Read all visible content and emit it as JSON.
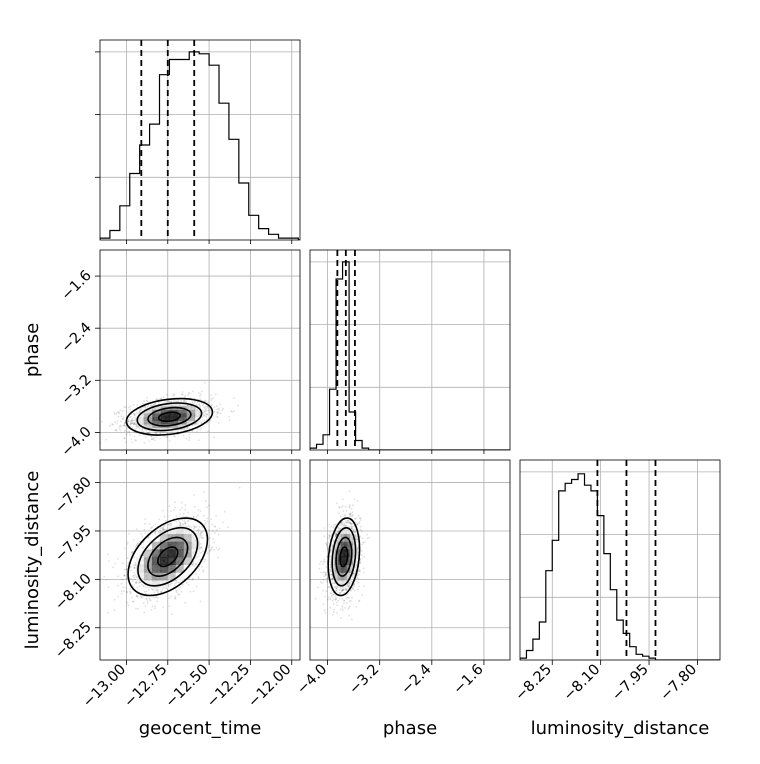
{
  "chart_data": {
    "type": "corner",
    "parameters": [
      "geocent_time",
      "phase",
      "luminosity_distance"
    ],
    "axis_labels": {
      "x": [
        "geocent_time",
        "phase",
        "luminosity_distance"
      ],
      "y_row2": "phase",
      "y_row3": "luminosity_distance"
    },
    "ranges": {
      "geocent_time": [
        -13.16,
        -11.95
      ],
      "phase": [
        -4.27,
        -1.2
      ],
      "luminosity_distance": [
        -8.35,
        -7.73
      ]
    },
    "ticks": {
      "geocent_time": [
        "-13.00",
        "-12.75",
        "-12.50",
        "-12.25",
        "-12.00"
      ],
      "phase": [
        "-4.0",
        "-3.2",
        "-2.4",
        "-1.6"
      ],
      "luminosity_distance": [
        "-8.25",
        "-8.10",
        "-7.95",
        "-7.80"
      ]
    },
    "quantiles": {
      "geocent_time": [
        -12.91,
        -12.75,
        -12.59
      ],
      "phase": [
        -3.85,
        -3.72,
        -3.58
      ],
      "luminosity_distance": [
        -8.11,
        -8.02,
        -7.93
      ]
    },
    "histograms": {
      "geocent_time": {
        "edges_start": -13.16,
        "bin_width": 0.06,
        "counts": [
          0.01,
          0.05,
          0.18,
          0.35,
          0.5,
          0.61,
          0.87,
          0.95,
          0.95,
          0.99,
          0.98,
          0.92,
          0.72,
          0.53,
          0.3,
          0.13,
          0.06,
          0.03,
          0.01,
          0.01,
          0.0
        ]
      },
      "phase": {
        "edges_start": -4.27,
        "bin_width": 0.1,
        "counts": [
          0.01,
          0.03,
          0.08,
          0.32,
          0.9,
          0.99,
          0.2,
          0.05,
          0.01,
          0.0,
          0,
          0,
          0,
          0,
          0,
          0,
          0,
          0,
          0,
          0,
          0,
          0,
          0,
          0,
          0,
          0,
          0,
          0,
          0,
          0,
          0
        ]
      },
      "luminosity_distance": {
        "edges_start": -8.35,
        "bin_width": 0.02,
        "counts": [
          0.01,
          0.05,
          0.11,
          0.2,
          0.47,
          0.63,
          0.89,
          0.93,
          0.95,
          0.98,
          0.92,
          0.89,
          0.76,
          0.56,
          0.37,
          0.21,
          0.14,
          0.07,
          0.03,
          0.02,
          0.01,
          0.0,
          0.0,
          0.0,
          0.0,
          0.0,
          0.0,
          0.0,
          0.0,
          0.0,
          0.0
        ]
      }
    },
    "joint_2d": [
      {
        "x": "geocent_time",
        "y": "phase",
        "mean": [
          -12.74,
          -3.76
        ],
        "sd": [
          0.13,
          0.14
        ],
        "corr": 0.25
      },
      {
        "x": "geocent_time",
        "y": "luminosity_distance",
        "mean": [
          -12.75,
          -8.03
        ],
        "sd": [
          0.12,
          0.06
        ],
        "corr": 0.45
      },
      {
        "x": "phase",
        "y": "luminosity_distance",
        "mean": [
          -3.75,
          -8.03
        ],
        "sd": [
          0.12,
          0.06
        ],
        "corr": 0.2
      }
    ],
    "contour_levels_sigma": [
      0.5,
      1.0,
      1.5,
      2.0
    ],
    "grid": true,
    "quantile_line_style": "dashed",
    "colors": {
      "line": "#000000",
      "grid": "#b0b0b0",
      "samples": "#000000"
    }
  }
}
